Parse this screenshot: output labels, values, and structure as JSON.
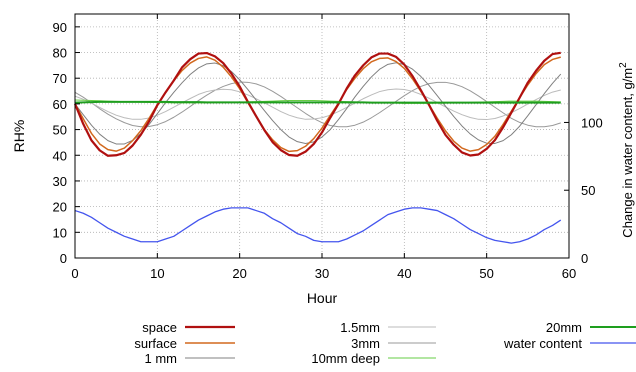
{
  "chart_data": {
    "type": "line",
    "xlabel": "Hour",
    "ylabel": "RH%",
    "y2label": "Change in water content, g/m",
    "y2label_superscript": "2",
    "xlim": [
      0,
      60
    ],
    "ylim": [
      0,
      95
    ],
    "y2lim": [
      0,
      180
    ],
    "xticks": [
      0,
      10,
      20,
      30,
      40,
      50,
      60
    ],
    "yticks": [
      0,
      10,
      20,
      30,
      40,
      50,
      60,
      70,
      80,
      90
    ],
    "y2ticks": [
      0,
      50,
      100
    ],
    "grid": true,
    "legend_position": "bottom",
    "x_samples_every": 1,
    "x_range": [
      0,
      59
    ],
    "series": [
      {
        "name": "space",
        "color": "#b01010",
        "width": 2.2,
        "axis": "left",
        "values": [
          60.0,
          52.2,
          45.8,
          41.9,
          39.8,
          40.0,
          40.9,
          43.8,
          48.0,
          53.2,
          59.5,
          64.5,
          69.1,
          74.2,
          77.4,
          79.6,
          79.8,
          78.5,
          75.9,
          71.8,
          66.8,
          60.8,
          55.2,
          49.8,
          45.1,
          42.0,
          40.1,
          39.8,
          41.4,
          44.4,
          48.9,
          54.6,
          60.0,
          66.0,
          71.1,
          75.0,
          78.1,
          79.6,
          79.6,
          78.3,
          75.3,
          70.8,
          65.4,
          59.6,
          53.4,
          47.9,
          44.1,
          41.1,
          39.9,
          40.3,
          42.5,
          45.9,
          50.9,
          56.6,
          62.4,
          68.3,
          72.9,
          76.8,
          79.4,
          79.9
        ]
      },
      {
        "name": "surface",
        "color": "#d2691e",
        "width": 1.5,
        "axis": "left",
        "values": [
          60.0,
          54.2,
          48.5,
          44.4,
          42.2,
          41.6,
          42.8,
          45.7,
          49.6,
          54.4,
          59.7,
          64.4,
          69.0,
          73.0,
          75.9,
          77.7,
          78.3,
          77.0,
          74.3,
          70.5,
          65.9,
          60.5,
          55.3,
          50.0,
          46.0,
          43.0,
          41.5,
          41.8,
          43.5,
          46.5,
          50.6,
          55.5,
          60.3,
          65.6,
          70.0,
          73.7,
          76.4,
          77.7,
          77.9,
          76.5,
          73.8,
          69.7,
          64.9,
          59.7,
          54.4,
          49.5,
          45.5,
          42.8,
          41.6,
          42.2,
          44.2,
          47.4,
          52.0,
          57.2,
          62.4,
          67.4,
          71.8,
          75.3,
          77.3,
          78.2
        ]
      },
      {
        "name": "1 mm",
        "color": "#808080",
        "width": 1.0,
        "axis": "left",
        "values": [
          60.0,
          55.8,
          51.7,
          48.2,
          45.7,
          44.4,
          44.4,
          45.8,
          48.4,
          52.0,
          56.2,
          60.5,
          64.5,
          68.2,
          71.5,
          74.0,
          75.6,
          75.9,
          74.9,
          72.6,
          69.4,
          65.6,
          61.5,
          57.4,
          53.5,
          50.0,
          47.1,
          45.3,
          44.6,
          45.2,
          47.1,
          50.0,
          53.9,
          58.2,
          62.7,
          66.8,
          70.5,
          73.5,
          75.4,
          76.0,
          75.3,
          73.5,
          70.7,
          67.2,
          63.2,
          59.1,
          55.1,
          51.4,
          48.3,
          46.0,
          44.7,
          44.6,
          45.7,
          48.0,
          51.3,
          55.4,
          59.7,
          64.0,
          68.0,
          71.6
        ]
      },
      {
        "name": "1.5mm",
        "color": "#bbbbbb",
        "width": 1.0,
        "axis": "left",
        "values": [
          63.0,
          61.8,
          60.3,
          58.6,
          57.0,
          55.6,
          54.6,
          54.0,
          54.0,
          54.5,
          55.6,
          57.0,
          58.7,
          60.4,
          62.1,
          63.7,
          64.8,
          65.4,
          65.7,
          65.5,
          64.7,
          63.5,
          62.0,
          60.4,
          58.7,
          57.0,
          55.6,
          54.6,
          54.0,
          54.1,
          54.6,
          55.6,
          57.0,
          58.6,
          60.3,
          62.0,
          63.5,
          64.8,
          65.5,
          65.8,
          65.6,
          64.9,
          63.7,
          62.2,
          60.5,
          58.8,
          57.2,
          55.8,
          54.7,
          54.0,
          53.9,
          54.3,
          55.3,
          56.6,
          58.2,
          60.0,
          61.7,
          63.3,
          64.6,
          65.4
        ]
      },
      {
        "name": "3mm",
        "color": "#999999",
        "width": 1.0,
        "axis": "left",
        "values": [
          64.5,
          62.6,
          60.4,
          58.1,
          56.0,
          54.2,
          52.7,
          51.6,
          51.1,
          51.2,
          51.9,
          53.1,
          54.8,
          56.8,
          59.0,
          61.3,
          63.4,
          65.3,
          66.8,
          67.9,
          68.5,
          68.4,
          67.8,
          66.6,
          64.9,
          62.9,
          60.7,
          58.5,
          56.3,
          54.3,
          52.7,
          51.6,
          51.1,
          51.1,
          51.7,
          52.9,
          54.6,
          56.6,
          58.8,
          61.0,
          63.2,
          65.2,
          66.8,
          67.9,
          68.4,
          68.4,
          67.8,
          66.7,
          65.1,
          63.1,
          60.9,
          58.7,
          56.5,
          54.4,
          52.8,
          51.7,
          51.1,
          51.1,
          51.6,
          52.6
        ]
      },
      {
        "name": "10mm deep",
        "color": "#66cc44",
        "width": 1.0,
        "axis": "left",
        "values": [
          61.5,
          61.4,
          61.3,
          61.2,
          61.1,
          61.0,
          60.9,
          60.8,
          60.7,
          60.6,
          60.5,
          60.5,
          60.4,
          60.4,
          60.4,
          60.4,
          60.4,
          60.5,
          60.5,
          60.6,
          60.7,
          60.8,
          60.9,
          61.0,
          61.1,
          61.2,
          61.3,
          61.3,
          61.3,
          61.3,
          61.2,
          61.1,
          61.0,
          60.9,
          60.8,
          60.7,
          60.6,
          60.5,
          60.4,
          60.3,
          60.2,
          60.2,
          60.2,
          60.2,
          60.3,
          60.3,
          60.4,
          60.5,
          60.6,
          60.7,
          60.8,
          60.9,
          61.0,
          61.1,
          61.1,
          61.1,
          61.1,
          61.0,
          60.9,
          60.8
        ]
      },
      {
        "name": "20mm",
        "color": "#1e9e1e",
        "width": 2.0,
        "axis": "left",
        "values": [
          60.5,
          60.6,
          60.7,
          60.8,
          60.8,
          60.8,
          60.8,
          60.8,
          60.8,
          60.8,
          60.8,
          60.8,
          60.7,
          60.7,
          60.7,
          60.7,
          60.6,
          60.6,
          60.6,
          60.6,
          60.6,
          60.6,
          60.6,
          60.6,
          60.6,
          60.6,
          60.6,
          60.6,
          60.6,
          60.6,
          60.6,
          60.6,
          60.6,
          60.6,
          60.6,
          60.6,
          60.5,
          60.5,
          60.5,
          60.5,
          60.5,
          60.5,
          60.5,
          60.5,
          60.5,
          60.5,
          60.5,
          60.5,
          60.5,
          60.5,
          60.5,
          60.5,
          60.5,
          60.5,
          60.5,
          60.5,
          60.5,
          60.5,
          60.5,
          60.5
        ]
      },
      {
        "name": "water content",
        "color": "#4455ee",
        "width": 1.3,
        "axis": "right",
        "values": [
          35,
          33,
          30,
          26,
          22,
          19,
          16,
          14,
          12,
          12,
          12,
          14,
          16,
          20,
          24,
          28,
          31,
          34,
          36,
          37,
          37,
          37,
          35,
          33,
          29,
          26,
          22,
          18,
          16,
          13,
          12,
          12,
          12,
          14,
          17,
          20,
          24,
          28,
          32,
          34,
          36,
          37,
          37,
          36,
          35,
          32,
          29,
          25,
          21,
          18,
          15,
          13,
          12,
          11,
          12,
          14,
          17,
          21,
          24,
          28
        ]
      }
    ]
  }
}
